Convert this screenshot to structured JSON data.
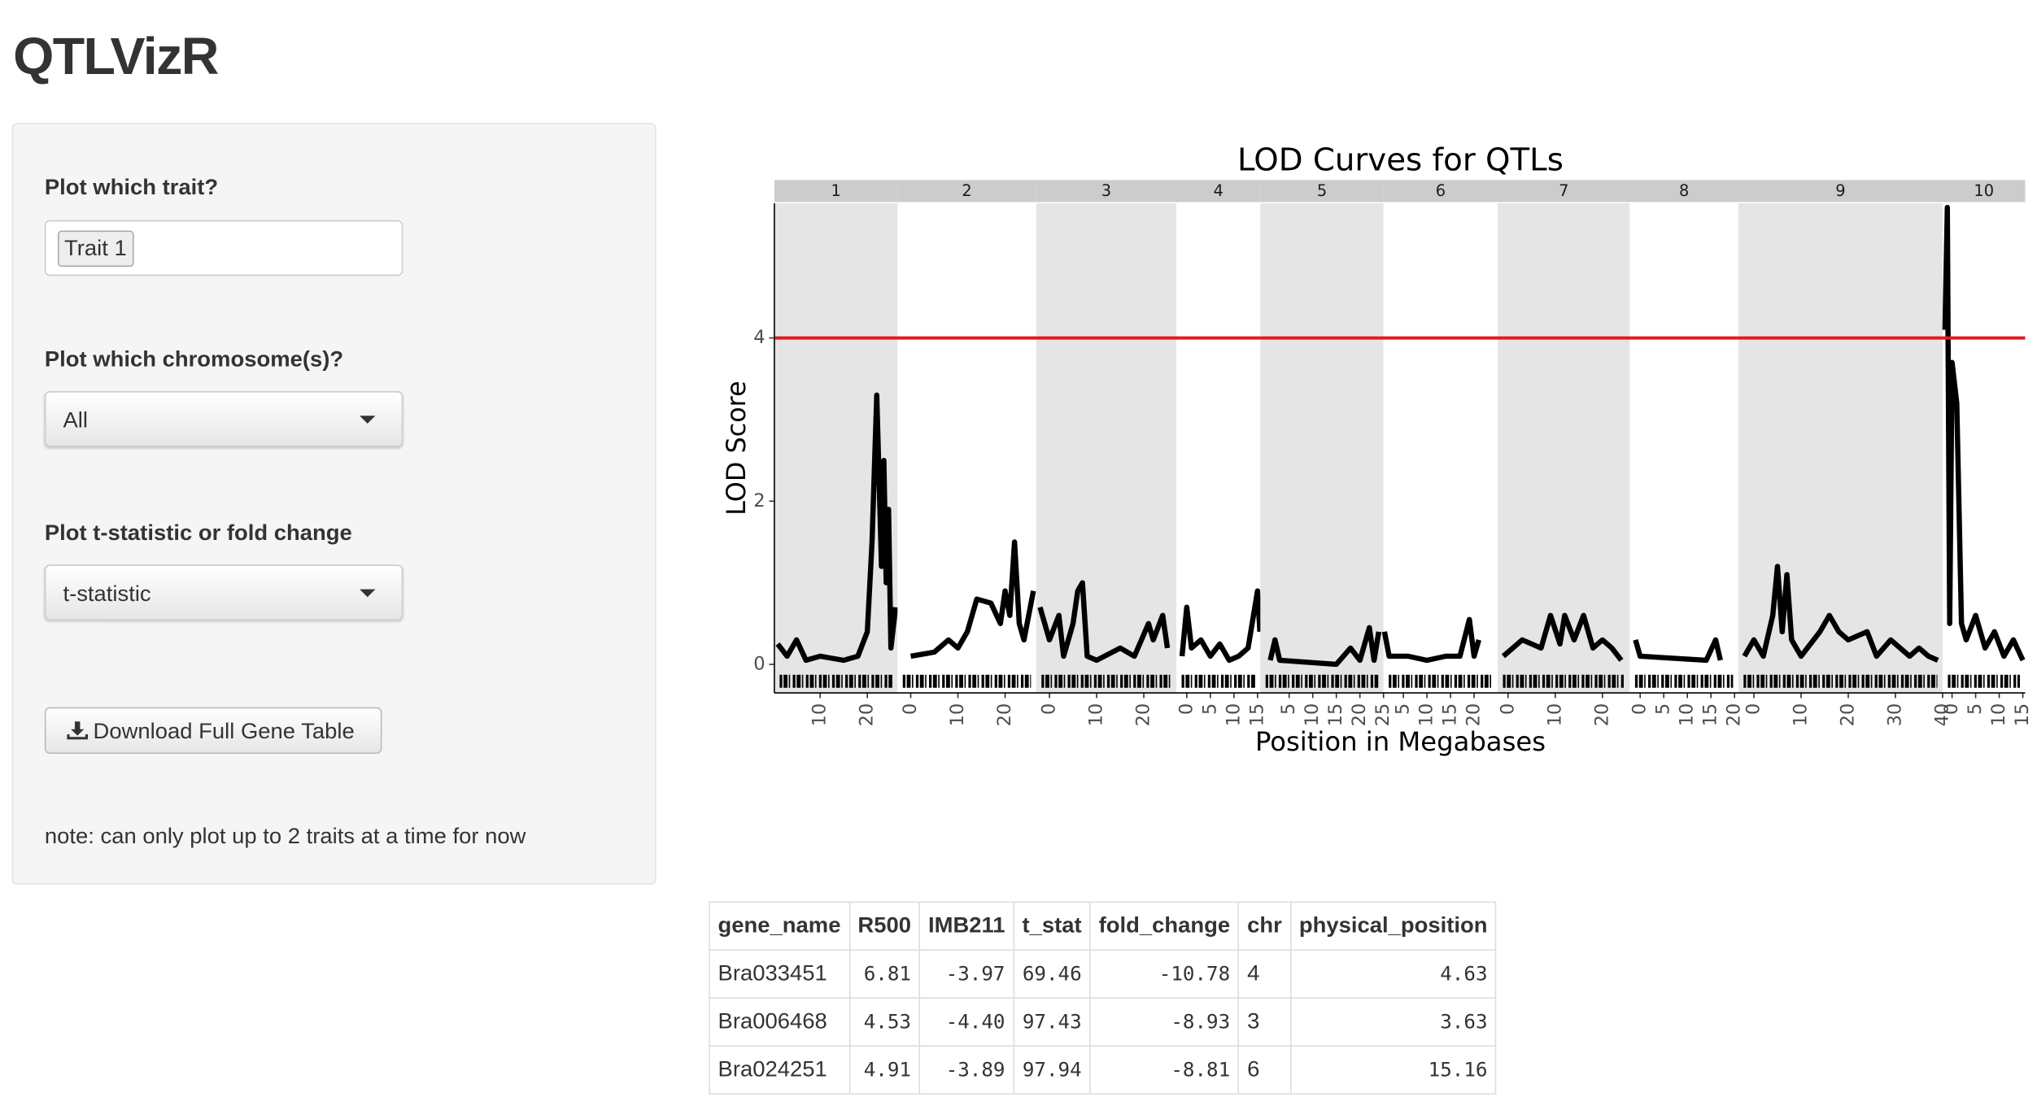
{
  "app_title": "QTLVizR",
  "sidebar": {
    "trait_label": "Plot which trait?",
    "trait_selected": "Trait 1",
    "chrom_label": "Plot which chromosome(s)?",
    "chrom_selected": "All",
    "stat_label": "Plot t-statistic or fold change",
    "stat_selected": "t-statistic",
    "download_button": "Download Full Gene Table",
    "note": "note: can only plot up to 2 traits at a time for now"
  },
  "chart_data": {
    "type": "line",
    "title": "LOD Curves for QTLs",
    "xlabel": "Position in Megabases",
    "ylabel": "LOD Score",
    "ylim": [
      -0.35,
      5.65
    ],
    "yticks": [
      0,
      2,
      4
    ],
    "threshold": 4,
    "threshold_color": "#e31a1c",
    "color": "#000000",
    "facets": [
      {
        "label": "1",
        "xlim": [
          0.3,
          26.4
        ],
        "xticks": [
          10,
          20
        ],
        "x": [
          1,
          3,
          5,
          7,
          10,
          15,
          18,
          20,
          21,
          22,
          23,
          23.5,
          24,
          24.5,
          25,
          26
        ],
        "values": [
          0.25,
          0.1,
          0.3,
          0.05,
          0.1,
          0.05,
          0.1,
          0.4,
          1.5,
          3.3,
          1.2,
          2.5,
          1.0,
          1.9,
          0.2,
          0.7
        ]
      },
      {
        "label": "2",
        "xlim": [
          -2.8,
          26.6
        ],
        "xticks": [
          0,
          10,
          20
        ],
        "x": [
          0,
          5,
          8,
          10,
          12,
          14,
          17,
          19,
          20,
          21,
          22,
          23,
          24,
          26
        ],
        "values": [
          0.1,
          0.15,
          0.3,
          0.2,
          0.4,
          0.8,
          0.75,
          0.5,
          0.9,
          0.6,
          1.5,
          0.5,
          0.3,
          0.9
        ]
      },
      {
        "label": "3",
        "xlim": [
          -2.8,
          26.9
        ],
        "xticks": [
          0,
          10,
          20
        ],
        "x": [
          -2,
          0,
          2,
          3,
          5,
          6,
          7,
          8,
          10,
          15,
          18,
          21,
          22,
          24,
          25
        ],
        "values": [
          0.7,
          0.3,
          0.6,
          0.1,
          0.5,
          0.9,
          1.0,
          0.1,
          0.05,
          0.2,
          0.1,
          0.5,
          0.3,
          0.6,
          0.2
        ]
      },
      {
        "label": "4",
        "xlim": [
          -2.2,
          15.6
        ],
        "xticks": [
          0,
          5,
          10,
          15
        ],
        "x": [
          -1,
          0,
          1,
          3,
          5,
          7,
          9,
          11,
          13,
          15,
          15.5
        ],
        "values": [
          0.1,
          0.7,
          0.2,
          0.3,
          0.1,
          0.25,
          0.05,
          0.1,
          0.2,
          0.9,
          0.4
        ]
      },
      {
        "label": "5",
        "xlim": [
          -1.1,
          25
        ],
        "xticks": [
          5,
          10,
          15,
          20,
          25
        ],
        "x": [
          1,
          2,
          3,
          15,
          18,
          20,
          22,
          23,
          24
        ],
        "values": [
          0.05,
          0.3,
          0.05,
          0.0,
          0.2,
          0.05,
          0.45,
          0.05,
          0.4
        ]
      },
      {
        "label": "6",
        "xlim": [
          0.8,
          25
        ],
        "xticks": [
          5,
          10,
          15,
          20
        ],
        "x": [
          1,
          2,
          6,
          10,
          14,
          17,
          19,
          20,
          21
        ],
        "values": [
          0.4,
          0.1,
          0.1,
          0.05,
          0.1,
          0.1,
          0.55,
          0.1,
          0.3
        ]
      },
      {
        "label": "7",
        "xlim": [
          -2.2,
          25.8
        ],
        "xticks": [
          0,
          10,
          20
        ],
        "x": [
          -1,
          3,
          7,
          9,
          11,
          12,
          14,
          16,
          18,
          20,
          22,
          24
        ],
        "values": [
          0.1,
          0.3,
          0.2,
          0.6,
          0.25,
          0.6,
          0.3,
          0.6,
          0.2,
          0.3,
          0.2,
          0.05
        ]
      },
      {
        "label": "8",
        "xlim": [
          -2.2,
          20.8
        ],
        "xticks": [
          0,
          5,
          10,
          15,
          20
        ],
        "x": [
          -1,
          0,
          14,
          16,
          17
        ],
        "values": [
          0.3,
          0.1,
          0.05,
          0.3,
          0.05
        ]
      },
      {
        "label": "9",
        "xlim": [
          -3.3,
          40
        ],
        "xticks": [
          0,
          10,
          20,
          30,
          40
        ],
        "x": [
          -2,
          0,
          2,
          4,
          5,
          6,
          7,
          8,
          10,
          14,
          16,
          18,
          20,
          24,
          26,
          29,
          33,
          35,
          37,
          39
        ],
        "values": [
          0.1,
          0.3,
          0.1,
          0.6,
          1.2,
          0.4,
          1.1,
          0.3,
          0.1,
          0.4,
          0.6,
          0.4,
          0.3,
          0.4,
          0.1,
          0.3,
          0.1,
          0.2,
          0.1,
          0.05
        ]
      },
      {
        "label": "10",
        "xlim": [
          -2,
          15.5
        ],
        "xticks": [
          0,
          5,
          10,
          15
        ],
        "x": [
          -1.5,
          -1,
          -0.5,
          0,
          1,
          2,
          3,
          5,
          7,
          9,
          11,
          13,
          15
        ],
        "values": [
          4.1,
          5.6,
          0.5,
          3.7,
          3.2,
          0.5,
          0.3,
          0.6,
          0.2,
          0.4,
          0.1,
          0.3,
          0.05
        ]
      }
    ]
  },
  "table": {
    "columns": [
      "gene_name",
      "R500",
      "IMB211",
      "t_stat",
      "fold_change",
      "chr",
      "physical_position"
    ],
    "rows": [
      [
        "Bra033451",
        "6.81",
        "-3.97",
        "69.46",
        "-10.78",
        "4",
        "4.63"
      ],
      [
        "Bra006468",
        "4.53",
        "-4.40",
        "97.43",
        "-8.93",
        "3",
        "3.63"
      ],
      [
        "Bra024251",
        "4.91",
        "-3.89",
        "97.94",
        "-8.81",
        "6",
        "15.16"
      ]
    ]
  }
}
